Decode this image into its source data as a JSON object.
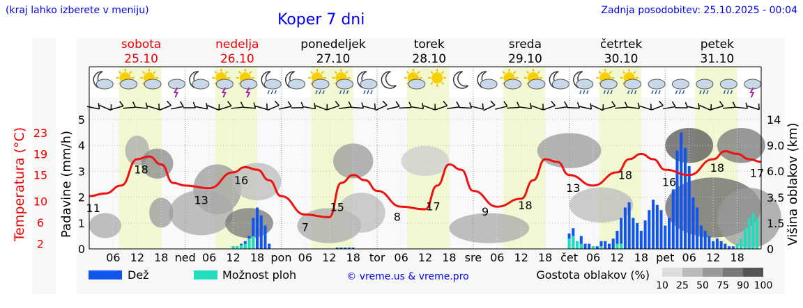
{
  "header": {
    "hint": "(kraj lahko izberete v meniju)",
    "title": "Koper 7 dni",
    "updated": "Zadnja posodobitev: 25.10.2025 - 00:04"
  },
  "days": [
    {
      "name": "sobota",
      "date": "25.10",
      "weekend": true
    },
    {
      "name": "nedelja",
      "date": "26.10",
      "weekend": true
    },
    {
      "name": "ponedeljek",
      "date": "27.10",
      "weekend": false
    },
    {
      "name": "torek",
      "date": "28.10",
      "weekend": false
    },
    {
      "name": "sreda",
      "date": "29.10",
      "weekend": false
    },
    {
      "name": "četrtek",
      "date": "30.10",
      "weekend": false
    },
    {
      "name": "petek",
      "date": "31.10",
      "weekend": false
    }
  ],
  "weather_icons": [
    [
      "moon-cloud-icon",
      "sun-cloud-icon",
      "sun-cloud-icon",
      "storm-icon"
    ],
    [
      "moon-cloud-icon",
      "sun-storm-icon",
      "sun-storm-icon",
      "moon-rain-icon"
    ],
    [
      "moon-cloud-icon",
      "sun-rain-icon",
      "sun-rain-icon",
      "moon-rain-icon"
    ],
    [
      "moon-icon",
      "sun-cloud-icon",
      "sun-icon",
      "moon-icon"
    ],
    [
      "moon-cloud-icon",
      "sun-cloud-icon",
      "sun-cloud-icon",
      "moon-cloud-icon"
    ],
    [
      "moon-rain-icon",
      "sun-rain-icon",
      "sun-rain-icon",
      "heavy-rain-icon"
    ],
    [
      "heavy-rain-icon",
      "heavy-rain-icon",
      "heavy-rain-icon",
      "storm-icon"
    ]
  ],
  "chart_data": {
    "type": "meteogram",
    "hours_total": 168,
    "x_tick_labels": [
      "06",
      "12",
      "18",
      "ned",
      "06",
      "12",
      "18",
      "pon",
      "06",
      "12",
      "18",
      "tor",
      "06",
      "12",
      "18",
      "sre",
      "06",
      "12",
      "18",
      "čet",
      "06",
      "12",
      "18",
      "pet",
      "06",
      "12",
      "18"
    ],
    "left_axis_precip": {
      "label": "Padavine (mm/h)",
      "range": [
        0,
        5
      ],
      "ticks": [
        0,
        1,
        2,
        3,
        4,
        5
      ]
    },
    "left_axis_temp": {
      "label": "Temperatura (°C)",
      "ticks": [
        2,
        6,
        10,
        15,
        19,
        23
      ],
      "range": [
        2,
        25
      ]
    },
    "right_axis_cloud": {
      "label": "Višina oblakov (km)",
      "ticks": [
        "0",
        "1.5",
        "3.5",
        "6.0",
        "9.0",
        "14"
      ]
    },
    "temperature": {
      "color": "#ee1111",
      "hours": [
        0,
        4,
        8,
        12,
        15,
        18,
        21,
        24,
        30,
        36,
        39,
        42,
        45,
        48,
        54,
        60,
        63,
        66,
        69,
        72,
        78,
        84,
        87,
        90,
        93,
        96,
        102,
        108,
        111,
        114,
        117,
        120,
        126,
        132,
        135,
        138,
        141,
        144,
        150,
        156,
        159,
        162,
        165,
        168
      ],
      "values": [
        11,
        11.5,
        13,
        18,
        18.5,
        17,
        13.5,
        13,
        12.5,
        15.5,
        16.5,
        16,
        14,
        11,
        7.5,
        7,
        13.5,
        15,
        14,
        12,
        9,
        8.5,
        13,
        17,
        16,
        12,
        9,
        10.5,
        14,
        18,
        17.5,
        15,
        13,
        15.5,
        18,
        19,
        18,
        16,
        15,
        18,
        19.5,
        19,
        18,
        17.5
      ]
    },
    "temp_labels": [
      {
        "hour": 1,
        "text": "11"
      },
      {
        "hour": 13,
        "text": "18"
      },
      {
        "hour": 28,
        "text": "13"
      },
      {
        "hour": 38,
        "text": "16"
      },
      {
        "hour": 54,
        "text": "7"
      },
      {
        "hour": 62,
        "text": "15"
      },
      {
        "hour": 77,
        "text": "8"
      },
      {
        "hour": 86,
        "text": "17"
      },
      {
        "hour": 99,
        "text": "9"
      },
      {
        "hour": 109,
        "text": "18"
      },
      {
        "hour": 121,
        "text": "13"
      },
      {
        "hour": 134,
        "text": "18"
      },
      {
        "hour": 145,
        "text": "16"
      },
      {
        "hour": 157,
        "text": "18"
      },
      {
        "hour": 168,
        "text": "17"
      }
    ],
    "rain_bars": {
      "color": "#1155ee",
      "hours": [
        36,
        37,
        38,
        39,
        40,
        41,
        42,
        43,
        44,
        45,
        62,
        63,
        64,
        65,
        66,
        120,
        121,
        122,
        123,
        124,
        125,
        126,
        127,
        128,
        129,
        130,
        131,
        132,
        133,
        134,
        135,
        136,
        137,
        138,
        139,
        140,
        141,
        142,
        143,
        144,
        145,
        146,
        147,
        148,
        149,
        150,
        151,
        152,
        153,
        154,
        155,
        156,
        157,
        158,
        159,
        160,
        161,
        162
      ],
      "values": [
        0.1,
        0.1,
        0.2,
        0.3,
        0.5,
        1.2,
        1.6,
        1.3,
        0.9,
        0.2,
        0.05,
        0.05,
        0.05,
        0.05,
        0.05,
        0.6,
        0.8,
        0.3,
        0.5,
        0.2,
        0.2,
        0.1,
        0.1,
        0.3,
        0.3,
        0.2,
        0.4,
        0.7,
        1.2,
        1.6,
        1.8,
        1.2,
        1.0,
        0.7,
        1.1,
        1.5,
        1.9,
        1.7,
        1.5,
        0.9,
        1.2,
        2.3,
        3.8,
        4.5,
        3.9,
        3.2,
        2.0,
        1.6,
        0.9,
        0.7,
        0.5,
        0.3,
        0.4,
        0.3,
        0.2,
        0.1,
        0.1,
        0.1
      ]
    },
    "storm_bars": {
      "color": "#22ddbb",
      "hours": [
        36,
        37,
        38,
        39,
        40,
        41,
        120,
        121,
        122,
        123,
        126,
        128,
        132,
        133,
        162,
        163,
        164,
        165,
        166,
        167
      ],
      "values": [
        0.1,
        0.1,
        0.15,
        0.2,
        0.4,
        0.5,
        0.4,
        0.5,
        0.3,
        0.2,
        0.1,
        0.1,
        0.2,
        0.2,
        0.2,
        0.4,
        0.8,
        1.2,
        1.4,
        1.2
      ]
    },
    "cloud_density_legend": {
      "title": "Gostota oblakov (%)",
      "ticks": [
        "10",
        "25",
        "50",
        "75",
        "90",
        "100"
      ]
    },
    "legend": [
      {
        "label": "Dež",
        "color": "#1155ee"
      },
      {
        "label": "Možnost ploh",
        "color": "#22ddbb"
      }
    ],
    "credit": "© vreme.us & vreme.pro"
  }
}
